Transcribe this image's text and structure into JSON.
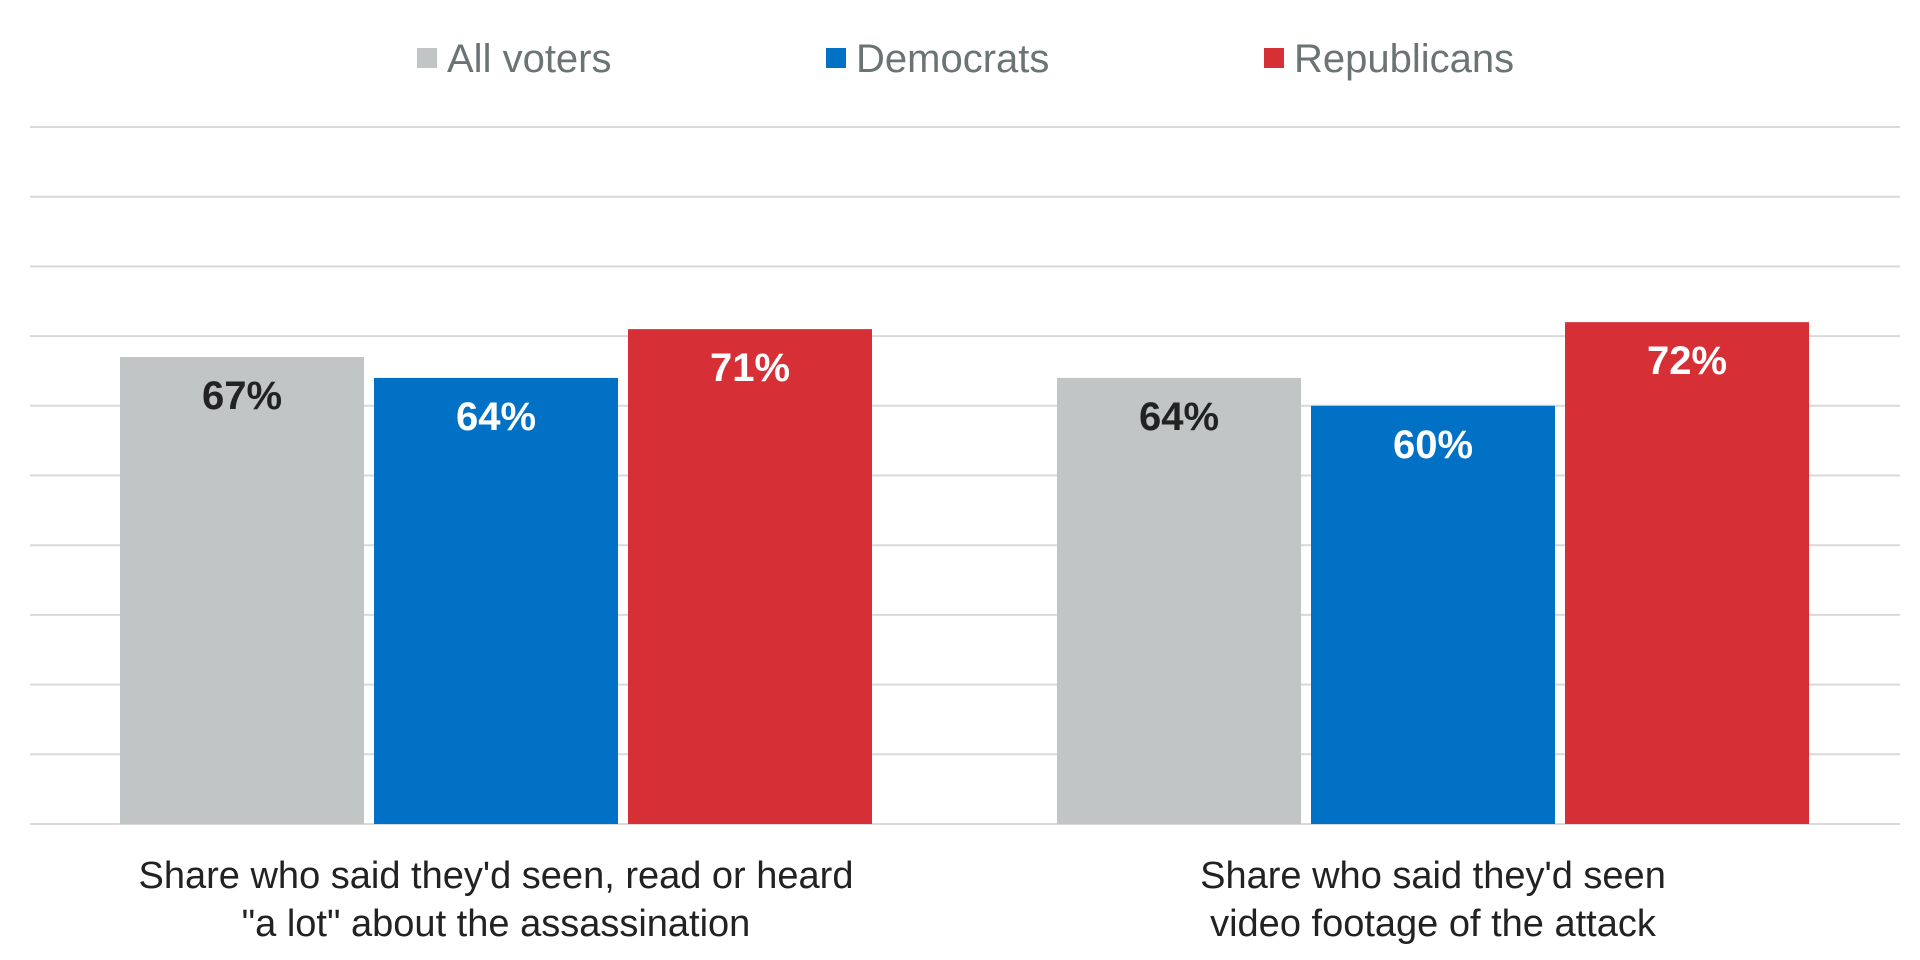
{
  "chart_data": {
    "type": "bar",
    "categories": [
      [
        "Share who said they'd seen, read or heard",
        "\"a lot\" about the assassination"
      ],
      [
        "Share who said they'd seen",
        "video footage of the attack"
      ]
    ],
    "series": [
      {
        "name": "All voters",
        "values": [
          67,
          64
        ],
        "color": "#c2c5c6",
        "label_color": "#222222"
      },
      {
        "name": "Democrats",
        "values": [
          64,
          60
        ],
        "color": "#0071c5",
        "label_color": "#ffffff"
      },
      {
        "name": "Republicans",
        "values": [
          71,
          72
        ],
        "color": "#d62f35",
        "label_color": "#ffffff"
      }
    ],
    "value_format": "{v}%",
    "ylim": [
      0,
      100
    ],
    "gridlines": true,
    "grid_step": 10,
    "legend_position": "top-center",
    "title": "",
    "xlabel": "",
    "ylabel": ""
  }
}
